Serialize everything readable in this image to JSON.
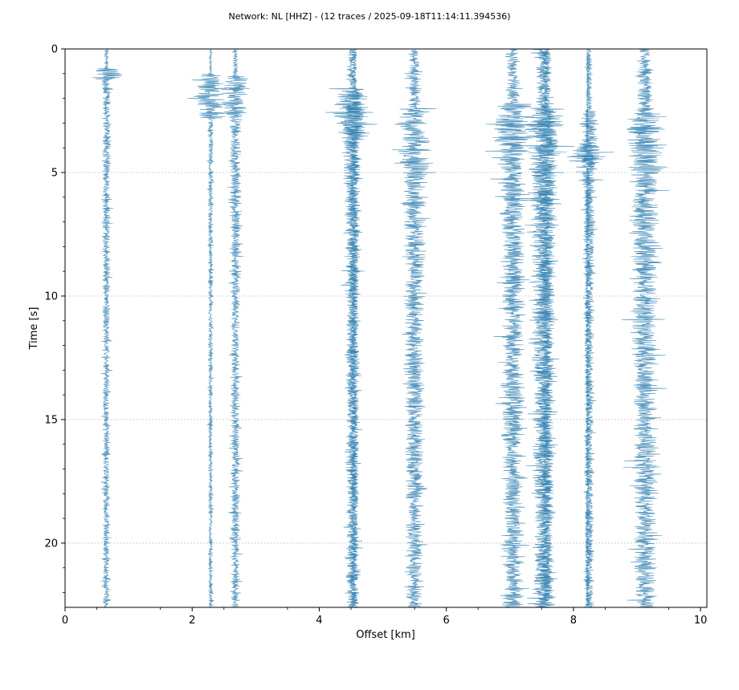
{
  "chart_data": {
    "type": "line",
    "title": "Network: NL [HHZ] - (12 traces / 2025-09-18T11:14:11.394536)",
    "xlabel": "Offset [km]",
    "ylabel": "Time [s]",
    "xlim": [
      0,
      10.1
    ],
    "ylim": [
      22.6,
      0
    ],
    "y_inverted": true,
    "x_ticks": [
      "0",
      "2",
      "4",
      "6",
      "8",
      "10"
    ],
    "y_ticks": [
      "0",
      "5",
      "10",
      "15",
      "20"
    ],
    "grid": "horizontal dotted",
    "trace_color": "#2f7fb0",
    "series": [
      {
        "offset": 0.65,
        "amplitude": 0.1,
        "burst_start": 0.8,
        "burst_end": 1.3,
        "burst_amplitude": 0.45
      },
      {
        "offset": 2.29,
        "amplitude": 0.06,
        "burst_start": 1.0,
        "burst_end": 2.8,
        "burst_amplitude": 0.45
      },
      {
        "offset": 2.68,
        "amplitude": 0.12,
        "burst_start": 1.1,
        "burst_end": 2.8,
        "burst_amplitude": 0.4
      },
      {
        "offset": 4.52,
        "amplitude": 0.18,
        "burst_start": 1.6,
        "burst_end": 3.6,
        "burst_amplitude": 0.45
      },
      {
        "offset": 4.55,
        "amplitude": 0.12,
        "burst_start": 1.6,
        "burst_end": 3.6,
        "burst_amplitude": 0.3
      },
      {
        "offset": 5.5,
        "amplitude": 0.24,
        "burst_start": 2.4,
        "burst_end": 5.5,
        "burst_amplitude": 0.45
      },
      {
        "offset": 7.05,
        "amplitude": 0.28,
        "burst_start": 2.2,
        "burst_end": 4.5,
        "burst_amplitude": 0.45
      },
      {
        "offset": 7.52,
        "amplitude": 0.28,
        "burst_start": 2.4,
        "burst_end": 5.0,
        "burst_amplitude": 0.45
      },
      {
        "offset": 7.58,
        "amplitude": 0.18,
        "burst_start": 2.4,
        "burst_end": 5.0,
        "burst_amplitude": 0.3
      },
      {
        "offset": 8.22,
        "amplitude": 0.06,
        "burst_start": 3.8,
        "burst_end": 4.8,
        "burst_amplitude": 0.45
      },
      {
        "offset": 8.25,
        "amplitude": 0.12,
        "burst_start": 2.5,
        "burst_end": 5.5,
        "burst_amplitude": 0.25
      },
      {
        "offset": 9.13,
        "amplitude": 0.32,
        "burst_start": 2.6,
        "burst_end": 5.2,
        "burst_amplitude": 0.45
      }
    ]
  }
}
